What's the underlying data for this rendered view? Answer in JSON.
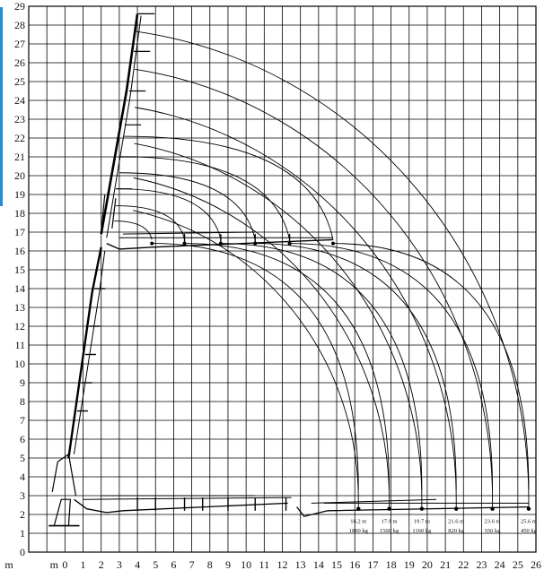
{
  "chart_data": {
    "type": "diagram",
    "x_unit_label": "m",
    "x_ticks": [
      "m",
      "0",
      "1",
      "2",
      "3",
      "4",
      "5",
      "6",
      "7",
      "8",
      "9",
      "10",
      "11",
      "12",
      "13",
      "14",
      "15",
      "16",
      "17",
      "18",
      "19",
      "20",
      "21",
      "22",
      "23",
      "24",
      "25",
      "26"
    ],
    "y_ticks": [
      "0",
      "1",
      "2",
      "3",
      "4",
      "5",
      "6",
      "7",
      "8",
      "9",
      "10",
      "11",
      "12",
      "13",
      "14",
      "15",
      "16",
      "17",
      "18",
      "19",
      "20",
      "21",
      "22",
      "23",
      "24",
      "25",
      "26",
      "27",
      "28",
      "29"
    ],
    "xlim": [
      -2,
      26
    ],
    "ylim": [
      0,
      29
    ],
    "grid": true,
    "pivot": {
      "x": 0.5,
      "y": 2.8
    },
    "outer_arcs": [
      {
        "reach": 16.2,
        "tip_height": 19.3
      },
      {
        "reach": 17.9,
        "tip_height": 21.0
      },
      {
        "reach": 19.7,
        "tip_height": 22.7
      },
      {
        "reach": 21.6,
        "tip_height": 24.5
      },
      {
        "reach": 23.6,
        "tip_height": 26.6
      },
      {
        "reach": 25.6,
        "tip_height": 28.6
      }
    ],
    "inner_arc_ends": [
      4.8,
      6.6,
      8.6,
      10.5,
      12.4,
      14.8
    ],
    "capacities": [
      {
        "reach": "16.2 m",
        "load": "1800 kg"
      },
      {
        "reach": "17.9 m",
        "load": "1500 kg"
      },
      {
        "reach": "19.7 m",
        "load": "1160 kg"
      },
      {
        "reach": "21.6 m",
        "load": "820 kg"
      },
      {
        "reach": "23.6 m",
        "load": "550 kg"
      },
      {
        "reach": "25.6 m",
        "load": "450 kg"
      }
    ]
  }
}
